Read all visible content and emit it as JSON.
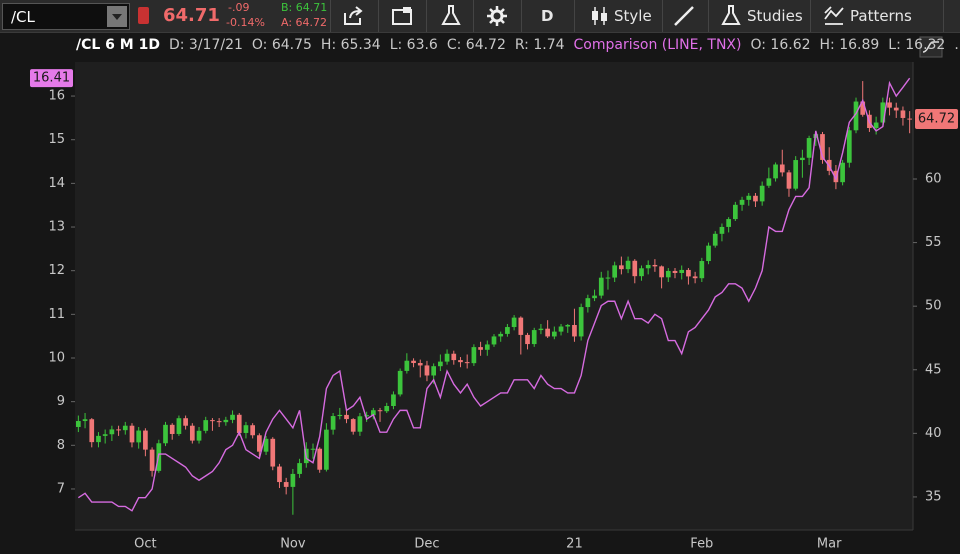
{
  "toolbar": {
    "symbol": "/CL",
    "last": "64.71",
    "change": "-.09",
    "change_pct": "-0.14%",
    "bid": "B: 64.71",
    "ask": "A: 64.72",
    "buttons": [
      "D",
      "Style",
      "Studies",
      "Patterns"
    ]
  },
  "header": {
    "symbol": "/CL 6 M 1D",
    "items": [
      "D: 3/17/21",
      "O: 64.75",
      "H: 65.34",
      "L: 63.6",
      "C: 64.72",
      "R: 1.74"
    ],
    "comparison_items": [
      "O: 16.62",
      "H: 16.89",
      "L: 16.32"
    ],
    "more": "..."
  },
  "chart_data": {
    "type": "candlestick",
    "categories": [
      null,
      null,
      null,
      null,
      null,
      null,
      null,
      null,
      null,
      null,
      "Oct",
      null,
      null,
      null,
      null,
      null,
      null,
      null,
      null,
      null,
      null,
      null,
      null,
      null,
      null,
      null,
      null,
      null,
      null,
      null,
      null,
      null,
      "Nov",
      null,
      null,
      null,
      null,
      null,
      null,
      null,
      null,
      null,
      null,
      null,
      null,
      null,
      null,
      null,
      null,
      null,
      null,
      null,
      "Dec",
      null,
      null,
      null,
      null,
      null,
      null,
      null,
      null,
      null,
      null,
      null,
      null,
      null,
      null,
      null,
      null,
      null,
      null,
      null,
      null,
      null,
      "21",
      null,
      null,
      null,
      null,
      null,
      null,
      null,
      null,
      null,
      null,
      null,
      null,
      null,
      null,
      null,
      null,
      null,
      null,
      "Feb",
      null,
      null,
      null,
      null,
      null,
      null,
      null,
      null,
      null,
      null,
      null,
      null,
      null,
      null,
      null,
      null,
      null,
      null,
      "Mar",
      null,
      null,
      null,
      null,
      null,
      null,
      null,
      null,
      null,
      null,
      null,
      null
    ],
    "candles": [
      [
        40.5,
        41.4,
        40.1,
        40.97
      ],
      [
        40.97,
        41.6,
        40.4,
        41.11
      ],
      [
        41.11,
        41.2,
        38.9,
        39.31
      ],
      [
        39.31,
        40.1,
        38.9,
        39.8
      ],
      [
        39.8,
        40.3,
        39.2,
        39.93
      ],
      [
        39.93,
        40.6,
        39.4,
        40.31
      ],
      [
        40.31,
        40.6,
        39.8,
        40.25
      ],
      [
        40.25,
        40.9,
        39.9,
        40.6
      ],
      [
        40.6,
        40.8,
        38.9,
        39.29
      ],
      [
        39.29,
        40.5,
        38.8,
        40.22
      ],
      [
        40.22,
        40.4,
        38.2,
        38.72
      ],
      [
        38.72,
        38.9,
        36.6,
        37.05
      ],
      [
        37.05,
        39.5,
        36.9,
        39.22
      ],
      [
        39.22,
        40.9,
        39.0,
        40.67
      ],
      [
        40.67,
        40.8,
        39.5,
        39.95
      ],
      [
        39.95,
        41.4,
        39.8,
        41.19
      ],
      [
        41.19,
        41.4,
        40.3,
        40.6
      ],
      [
        40.6,
        40.8,
        39.2,
        39.43
      ],
      [
        39.43,
        40.5,
        39.2,
        40.2
      ],
      [
        40.2,
        41.3,
        40.0,
        41.04
      ],
      [
        41.04,
        41.2,
        40.2,
        40.96
      ],
      [
        40.96,
        41.2,
        40.5,
        40.88
      ],
      [
        40.88,
        41.3,
        40.6,
        41.06
      ],
      [
        41.06,
        41.8,
        40.8,
        41.46
      ],
      [
        41.46,
        41.6,
        39.8,
        40.03
      ],
      [
        40.03,
        40.9,
        39.6,
        40.64
      ],
      [
        40.64,
        40.8,
        39.6,
        39.85
      ],
      [
        39.85,
        40.0,
        38.2,
        38.56
      ],
      [
        38.56,
        39.8,
        38.3,
        39.57
      ],
      [
        39.57,
        39.7,
        37.1,
        37.39
      ],
      [
        37.39,
        37.6,
        35.7,
        36.17
      ],
      [
        36.17,
        36.5,
        35.2,
        35.79
      ],
      [
        35.79,
        37.2,
        33.6,
        36.81
      ],
      [
        36.81,
        38.0,
        36.5,
        37.66
      ],
      [
        37.66,
        39.3,
        37.3,
        38.79
      ],
      [
        38.79,
        39.2,
        38.0,
        38.79
      ],
      [
        38.79,
        38.9,
        36.9,
        37.14
      ],
      [
        37.14,
        40.8,
        37.0,
        40.29
      ],
      [
        40.29,
        41.6,
        39.9,
        41.36
      ],
      [
        41.36,
        42.0,
        41.1,
        41.45
      ],
      [
        41.45,
        41.9,
        40.8,
        41.12
      ],
      [
        41.12,
        41.2,
        39.9,
        40.13
      ],
      [
        40.13,
        41.6,
        39.8,
        41.34
      ],
      [
        41.34,
        41.7,
        40.9,
        41.43
      ],
      [
        41.43,
        42.0,
        41.1,
        41.82
      ],
      [
        41.82,
        42.0,
        40.9,
        41.74
      ],
      [
        41.74,
        42.4,
        41.6,
        42.15
      ],
      [
        42.15,
        43.3,
        41.9,
        43.06
      ],
      [
        43.06,
        45.1,
        42.9,
        44.91
      ],
      [
        44.91,
        46.3,
        44.7,
        45.71
      ],
      [
        45.71,
        45.9,
        45.2,
        45.53
      ],
      [
        45.53,
        45.8,
        44.4,
        45.34
      ],
      [
        45.34,
        45.7,
        44.1,
        44.55
      ],
      [
        44.55,
        45.5,
        43.9,
        45.28
      ],
      [
        45.28,
        46.2,
        44.9,
        45.64
      ],
      [
        45.64,
        46.6,
        45.4,
        46.26
      ],
      [
        46.26,
        46.5,
        45.4,
        45.76
      ],
      [
        45.76,
        46.0,
        45.2,
        45.6
      ],
      [
        45.6,
        46.2,
        45.1,
        45.52
      ],
      [
        45.52,
        47.0,
        45.3,
        46.78
      ],
      [
        46.78,
        47.2,
        46.1,
        46.57
      ],
      [
        46.57,
        47.3,
        46.1,
        46.99
      ],
      [
        46.99,
        47.8,
        46.8,
        47.62
      ],
      [
        47.62,
        48.0,
        47.2,
        47.82
      ],
      [
        47.82,
        48.6,
        47.6,
        48.36
      ],
      [
        48.36,
        49.3,
        48.1,
        49.1
      ],
      [
        49.1,
        49.2,
        46.2,
        47.74
      ],
      [
        47.74,
        47.9,
        46.6,
        47.02
      ],
      [
        47.02,
        48.3,
        46.8,
        48.12
      ],
      [
        48.12,
        48.6,
        47.8,
        48.23
      ],
      [
        48.23,
        48.9,
        47.5,
        47.62
      ],
      [
        47.62,
        48.4,
        47.4,
        48.0
      ],
      [
        48.0,
        48.6,
        47.7,
        48.4
      ],
      [
        48.4,
        48.6,
        47.9,
        48.52
      ],
      [
        48.52,
        49.8,
        47.2,
        47.62
      ],
      [
        47.62,
        50.2,
        47.3,
        49.93
      ],
      [
        49.93,
        50.9,
        49.5,
        50.63
      ],
      [
        50.63,
        51.3,
        50.4,
        50.83
      ],
      [
        50.83,
        52.7,
        50.6,
        52.24
      ],
      [
        52.24,
        52.8,
        51.3,
        52.25
      ],
      [
        52.25,
        53.5,
        51.9,
        53.21
      ],
      [
        53.21,
        53.9,
        52.5,
        52.91
      ],
      [
        52.91,
        53.9,
        52.6,
        53.57
      ],
      [
        53.57,
        53.7,
        51.8,
        52.36
      ],
      [
        52.36,
        53.2,
        52.0,
        52.98
      ],
      [
        52.98,
        53.6,
        52.5,
        53.24
      ],
      [
        53.24,
        53.7,
        52.7,
        53.13
      ],
      [
        53.13,
        53.2,
        51.4,
        52.27
      ],
      [
        52.27,
        53.0,
        51.9,
        52.77
      ],
      [
        52.77,
        53.0,
        52.2,
        52.61
      ],
      [
        52.61,
        53.2,
        52.1,
        52.85
      ],
      [
        52.85,
        53.0,
        51.7,
        52.34
      ],
      [
        52.34,
        52.7,
        51.8,
        52.2
      ],
      [
        52.2,
        53.8,
        51.9,
        53.55
      ],
      [
        53.55,
        55.0,
        53.3,
        54.76
      ],
      [
        54.76,
        55.9,
        54.6,
        55.69
      ],
      [
        55.69,
        56.5,
        55.1,
        56.23
      ],
      [
        56.23,
        57.0,
        55.8,
        56.85
      ],
      [
        56.85,
        58.2,
        56.7,
        57.97
      ],
      [
        57.97,
        58.6,
        57.5,
        58.36
      ],
      [
        58.36,
        58.9,
        57.9,
        58.68
      ],
      [
        58.68,
        58.9,
        57.8,
        58.24
      ],
      [
        58.24,
        59.8,
        57.9,
        59.47
      ],
      [
        59.47,
        60.9,
        59.3,
        60.05
      ],
      [
        60.05,
        61.3,
        59.8,
        61.14
      ],
      [
        61.14,
        62.3,
        60.2,
        60.52
      ],
      [
        60.52,
        60.7,
        58.6,
        59.24
      ],
      [
        59.24,
        61.8,
        59.1,
        61.49
      ],
      [
        61.49,
        62.3,
        60.1,
        61.67
      ],
      [
        61.67,
        63.4,
        61.1,
        63.22
      ],
      [
        63.22,
        63.8,
        62.6,
        63.53
      ],
      [
        63.53,
        63.7,
        61.2,
        61.5
      ],
      [
        61.5,
        62.5,
        60.3,
        60.64
      ],
      [
        60.64,
        61.1,
        59.2,
        59.75
      ],
      [
        59.75,
        61.5,
        59.5,
        61.28
      ],
      [
        61.28,
        64.1,
        60.9,
        63.83
      ],
      [
        63.83,
        66.4,
        63.6,
        66.09
      ],
      [
        66.09,
        67.7,
        64.9,
        65.05
      ],
      [
        65.05,
        65.4,
        63.7,
        64.01
      ],
      [
        64.01,
        64.9,
        63.5,
        64.44
      ],
      [
        64.44,
        66.4,
        64.2,
        66.02
      ],
      [
        66.02,
        66.4,
        65.0,
        65.61
      ],
      [
        65.61,
        66.0,
        64.8,
        65.39
      ],
      [
        65.39,
        65.7,
        64.2,
        64.8
      ],
      [
        64.75,
        65.34,
        63.6,
        64.72
      ]
    ],
    "color_up": "#3cc43c",
    "color_down": "#f07777",
    "ylim": [
      32.4,
      69.2
    ],
    "yticks": [
      35,
      40,
      45,
      50,
      55,
      60
    ],
    "series": [
      {
        "name": "Comparison (LINE, TNX)",
        "color": "#d66be0",
        "axis": "y2",
        "values": [
          6.8,
          6.9,
          6.7,
          6.7,
          6.7,
          6.7,
          6.6,
          6.6,
          6.5,
          6.8,
          6.8,
          7.0,
          7.8,
          7.8,
          7.7,
          7.6,
          7.5,
          7.3,
          7.2,
          7.3,
          7.4,
          7.6,
          7.9,
          8.0,
          8.3,
          7.9,
          7.8,
          7.7,
          8.3,
          8.6,
          8.8,
          8.6,
          8.4,
          8.8,
          7.7,
          7.6,
          8.2,
          9.3,
          9.6,
          9.7,
          8.8,
          8.9,
          9.1,
          8.6,
          8.7,
          8.3,
          8.3,
          8.6,
          8.8,
          8.8,
          8.4,
          8.4,
          9.3,
          9.5,
          9.1,
          9.7,
          9.4,
          9.2,
          9.4,
          9.1,
          8.9,
          9.0,
          9.1,
          9.2,
          9.2,
          9.5,
          9.5,
          9.5,
          9.3,
          9.6,
          9.4,
          9.3,
          9.3,
          9.2,
          9.2,
          9.6,
          10.4,
          10.8,
          11.2,
          11.3,
          11.3,
          10.9,
          11.3,
          10.9,
          10.9,
          10.8,
          11.0,
          10.9,
          10.4,
          10.4,
          10.1,
          10.6,
          10.7,
          10.9,
          11.1,
          11.4,
          11.5,
          11.7,
          11.7,
          11.6,
          11.3,
          11.6,
          12.0,
          13.0,
          12.9,
          12.9,
          13.4,
          13.7,
          13.7,
          13.9,
          15.2,
          14.6,
          14.4,
          14.1,
          14.7,
          15.4,
          15.6,
          15.9,
          15.4,
          15.2,
          15.3,
          16.3,
          16.0,
          16.2,
          16.41
        ]
      }
    ],
    "y2lim": [
      6.06,
      16.78
    ],
    "y2ticks": [
      7,
      8,
      9,
      10,
      11,
      12,
      13,
      14,
      15,
      16
    ],
    "price_tag": "64.72",
    "comparison_tag": "16.41",
    "grid": false
  }
}
